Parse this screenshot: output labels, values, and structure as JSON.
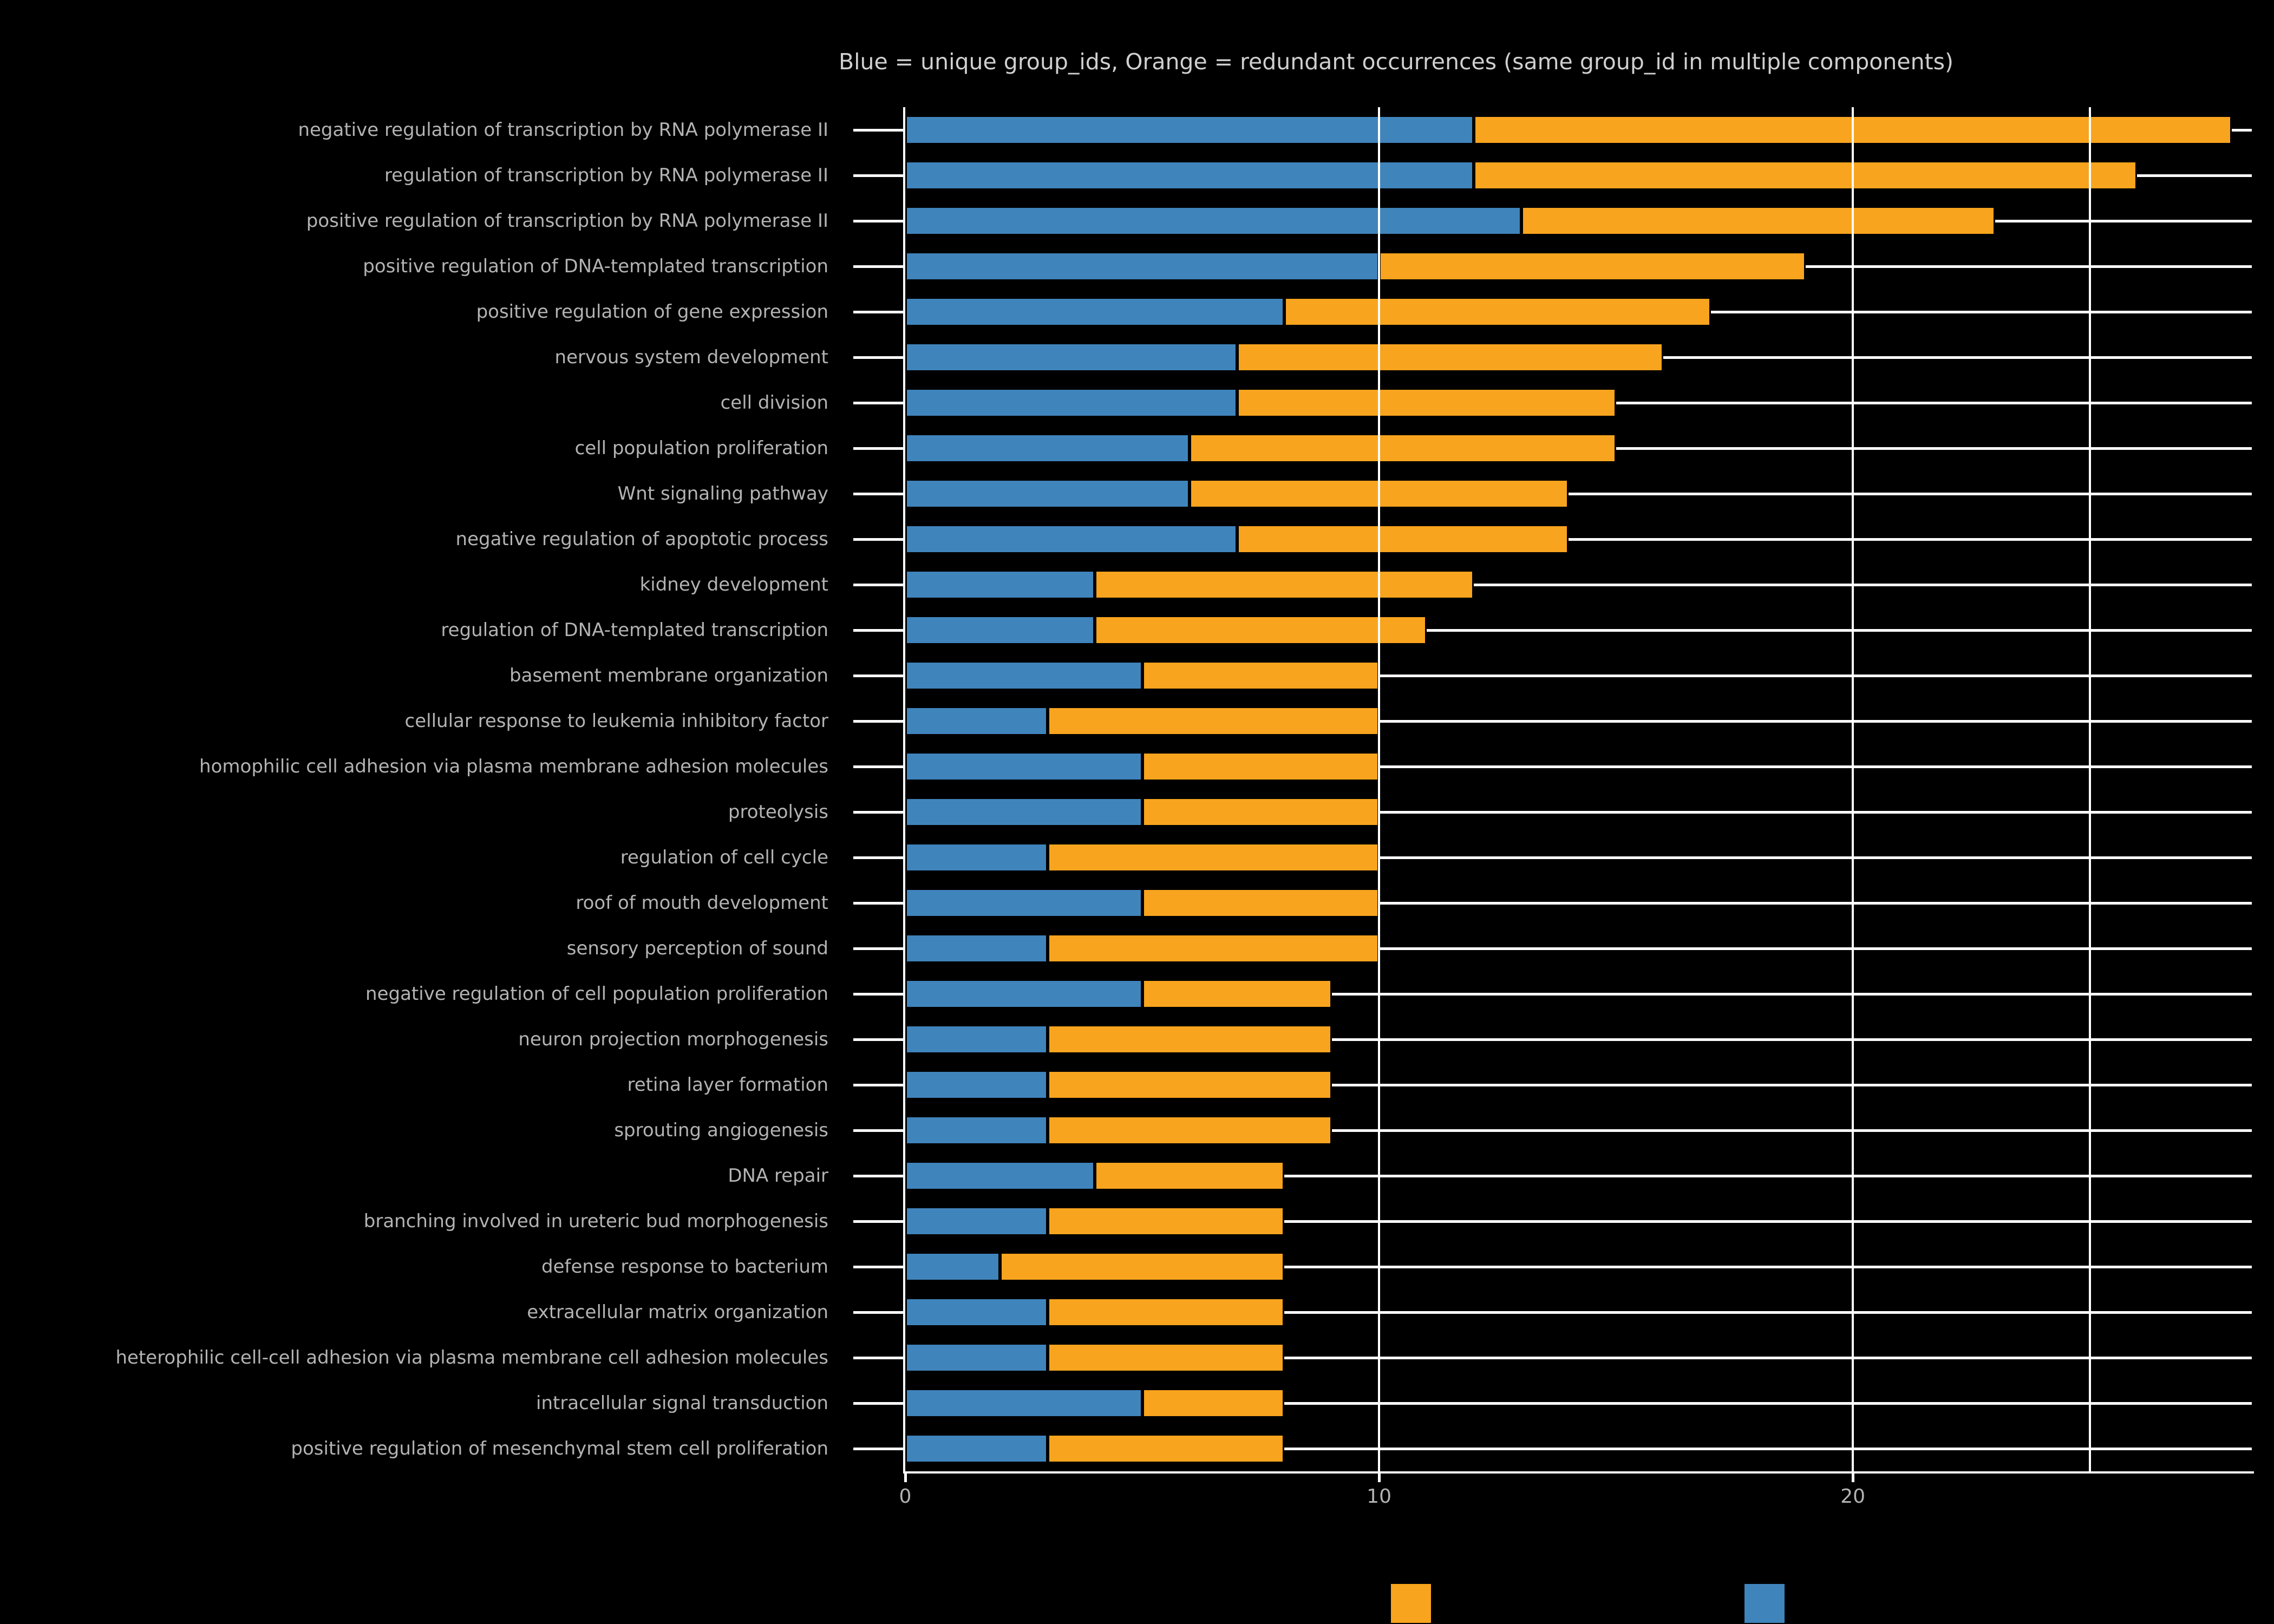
{
  "title": "Blue = unique group_ids, Orange = redundant occurrences (same group_id in multiple components)",
  "colors": {
    "background": "#000000",
    "blue": "#4084bc",
    "orange": "#f8a41e",
    "grid": "#ffffff",
    "label_text": "#b3b3b3",
    "title_text": "#cfcfcf"
  },
  "chart_data": {
    "type": "bar",
    "orientation": "horizontal",
    "stacked": true,
    "title": "Blue = unique group_ids, Orange = redundant occurrences (same group_id in multiple components)",
    "categories": [
      "negative regulation of transcription by RNA polymerase II",
      "regulation of transcription by RNA polymerase II",
      "positive regulation of transcription by RNA polymerase II",
      "positive regulation of DNA-templated transcription",
      "positive regulation of gene expression",
      "nervous system development",
      "cell division",
      "cell population proliferation",
      "Wnt signaling pathway",
      "negative regulation of apoptotic process",
      "kidney development",
      "regulation of DNA-templated transcription",
      "basement membrane organization",
      "cellular response to leukemia inhibitory factor",
      "homophilic cell adhesion via plasma membrane adhesion molecules",
      "proteolysis",
      "regulation of cell cycle",
      "roof of mouth development",
      "sensory perception of sound",
      "negative regulation of cell population proliferation",
      "neuron projection morphogenesis",
      "retina layer formation",
      "sprouting angiogenesis",
      "DNA repair",
      "branching involved in ureteric bud morphogenesis",
      "defense response to bacterium",
      "extracellular matrix organization",
      "heterophilic cell-cell adhesion via plasma membrane cell adhesion molecules",
      "intracellular signal transduction",
      "positive regulation of mesenchymal stem cell proliferation"
    ],
    "series": [
      {
        "name": "unique group_ids",
        "color_key": "blue",
        "values": [
          12,
          12,
          13,
          10,
          8,
          7,
          7,
          6,
          6,
          7,
          4,
          4,
          5,
          3,
          5,
          5,
          3,
          5,
          3,
          5,
          3,
          3,
          3,
          4,
          3,
          2,
          3,
          3,
          5,
          3
        ]
      },
      {
        "name": "redundant occurrences (same group_id in multiple components)",
        "color_key": "orange",
        "values": [
          16,
          14,
          10,
          9,
          9,
          9,
          8,
          9,
          8,
          7,
          8,
          7,
          5,
          7,
          5,
          5,
          7,
          5,
          7,
          4,
          6,
          6,
          6,
          4,
          5,
          6,
          5,
          5,
          3,
          5
        ]
      }
    ],
    "totals": [
      28,
      26,
      23,
      19,
      17,
      16,
      15,
      15,
      14,
      14,
      12,
      11,
      10,
      10,
      10,
      10,
      10,
      10,
      10,
      9,
      9,
      9,
      9,
      8,
      8,
      8,
      8,
      8,
      8,
      8
    ],
    "x_ticks": [
      0,
      10,
      20
    ],
    "x_gridlines": [
      10,
      20,
      25
    ],
    "xlim": [
      0,
      28.42
    ],
    "grid": true,
    "legend_position": "bottom",
    "legend_swatches": [
      "orange",
      "blue"
    ]
  }
}
